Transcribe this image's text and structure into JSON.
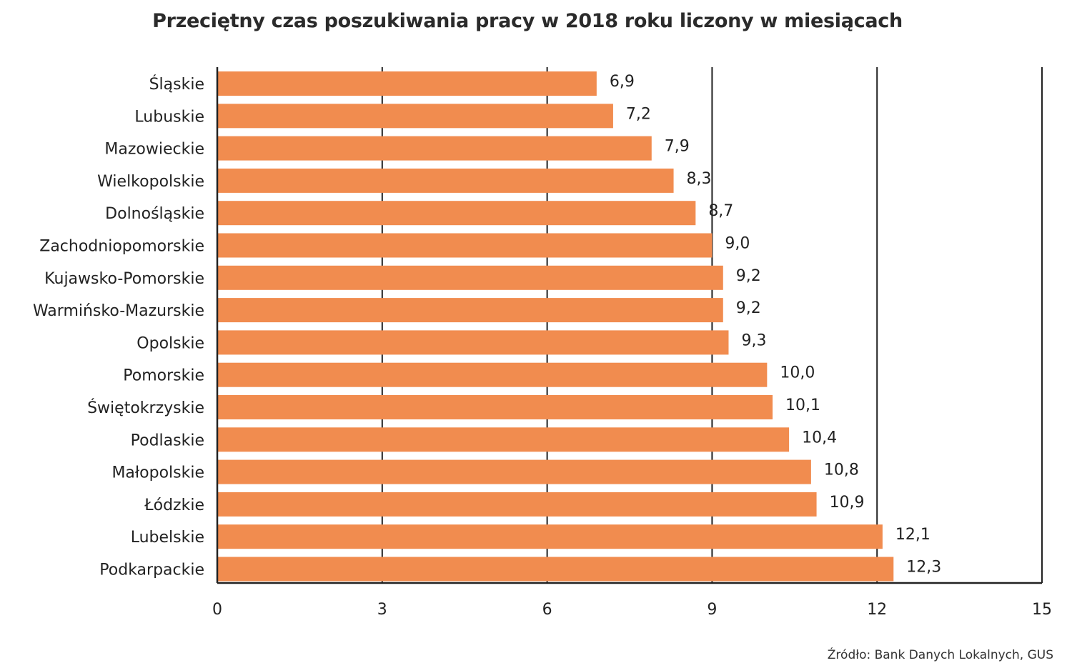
{
  "chart_data": {
    "type": "bar",
    "orientation": "horizontal",
    "title": "Przeciętny czas poszukiwania pracy w 2018 roku liczony w miesiącach",
    "categories": [
      "Śląskie",
      "Lubuskie",
      "Mazowieckie",
      "Wielkopolskie",
      "Dolnośląskie",
      "Zachodniopomorskie",
      "Kujawsko-Pomorskie",
      "Warmińsko-Mazurskie",
      "Opolskie",
      "Pomorskie",
      "Świętokrzyskie",
      "Podlaskie",
      "Małopolskie",
      "Łódzkie",
      "Lubelskie",
      "Podkarpackie"
    ],
    "values": [
      6.9,
      7.2,
      7.9,
      8.3,
      8.7,
      9.0,
      9.2,
      9.2,
      9.3,
      10.0,
      10.1,
      10.4,
      10.8,
      10.9,
      12.1,
      12.3
    ],
    "value_labels": [
      "6,9",
      "7,2",
      "7,9",
      "8,3",
      "8,7",
      "9,0",
      "9,2",
      "9,2",
      "9,3",
      "10,0",
      "10,1",
      "10,4",
      "10,8",
      "10,9",
      "12,1",
      "12,3"
    ],
    "xlim": [
      0,
      15
    ],
    "xticks": [
      0,
      3,
      6,
      9,
      12,
      15
    ],
    "grid": true,
    "bar_color": "#f18c4f",
    "grid_color": "#222222",
    "source": "Źródło: Bank Danych Lokalnych, GUS"
  }
}
